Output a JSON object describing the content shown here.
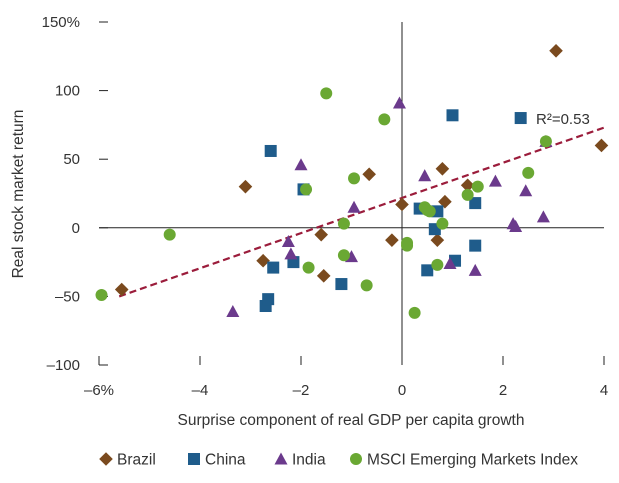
{
  "chart_data": {
    "type": "scatter",
    "xlabel": "Surprise component of real GDP per capita growth",
    "ylabel": "Real stock market return",
    "xlim": [
      -6,
      4
    ],
    "ylim": [
      -100,
      150
    ],
    "x_ticks": [
      -6,
      -4,
      -2,
      0,
      2,
      4
    ],
    "x_tick_labels": [
      "–6%",
      "–4",
      "–2",
      "0",
      "2",
      "4"
    ],
    "y_ticks": [
      -100,
      -50,
      0,
      50,
      100,
      150
    ],
    "y_tick_labels": [
      "–100",
      "–50",
      "0",
      "50",
      "100",
      "150%"
    ],
    "grid": false,
    "legend_position": "bottom",
    "trendline": {
      "x": [
        -5.6,
        4
      ],
      "y": [
        -50,
        73
      ],
      "color": "#9b1c3b",
      "style": "dashed"
    },
    "annotation": "R²=0.53",
    "series": [
      {
        "name": "Brazil",
        "marker": "diamond",
        "color": "#7a4a1e",
        "points": [
          [
            -5.55,
            -45
          ],
          [
            -3.1,
            30
          ],
          [
            -2.75,
            -24
          ],
          [
            -1.6,
            -5
          ],
          [
            -1.55,
            -35
          ],
          [
            -0.65,
            39
          ],
          [
            -0.2,
            -9
          ],
          [
            0,
            17
          ],
          [
            0.7,
            -9
          ],
          [
            0.85,
            19
          ],
          [
            0.8,
            43
          ],
          [
            1.3,
            31
          ],
          [
            3.05,
            129
          ],
          [
            3.95,
            60
          ]
        ]
      },
      {
        "name": "China",
        "marker": "square",
        "color": "#1f5c8b",
        "points": [
          [
            -2.6,
            56
          ],
          [
            -2.7,
            -57
          ],
          [
            -2.65,
            -52
          ],
          [
            -2.55,
            -29
          ],
          [
            -2.15,
            -25
          ],
          [
            -1.95,
            28
          ],
          [
            -1.2,
            -41
          ],
          [
            0.35,
            14
          ],
          [
            0.5,
            -31
          ],
          [
            0.65,
            -1
          ],
          [
            0.7,
            12
          ],
          [
            1.0,
            82
          ],
          [
            1.05,
            -24
          ],
          [
            1.45,
            18
          ],
          [
            1.45,
            -13
          ],
          [
            2.35,
            80
          ]
        ]
      },
      {
        "name": "India",
        "marker": "triangle",
        "color": "#6b3a8c",
        "points": [
          [
            -3.35,
            -61
          ],
          [
            -2.25,
            -10
          ],
          [
            -2.2,
            -19
          ],
          [
            -2.0,
            46
          ],
          [
            -1.0,
            -21
          ],
          [
            -0.95,
            15
          ],
          [
            -0.05,
            91
          ],
          [
            0.45,
            38
          ],
          [
            0.95,
            -26
          ],
          [
            1.45,
            -31
          ],
          [
            1.85,
            34
          ],
          [
            2.2,
            3
          ],
          [
            2.25,
            1
          ],
          [
            2.45,
            27
          ],
          [
            2.8,
            8
          ],
          [
            2.85,
            63
          ]
        ]
      },
      {
        "name": "MSCI Emerging Markets Index",
        "marker": "circle",
        "color": "#6aa833",
        "points": [
          [
            -5.95,
            -49
          ],
          [
            -4.6,
            -5
          ],
          [
            -1.9,
            28
          ],
          [
            -1.85,
            -29
          ],
          [
            -1.5,
            98
          ],
          [
            -1.15,
            3
          ],
          [
            -1.15,
            -20
          ],
          [
            -0.95,
            36
          ],
          [
            -0.7,
            -42
          ],
          [
            -0.35,
            79
          ],
          [
            0.1,
            -11
          ],
          [
            0.1,
            -13
          ],
          [
            0.25,
            -62
          ],
          [
            0.45,
            15
          ],
          [
            0.5,
            13
          ],
          [
            0.55,
            12
          ],
          [
            0.7,
            -27
          ],
          [
            0.8,
            3
          ],
          [
            1.3,
            24
          ],
          [
            1.5,
            30
          ],
          [
            2.5,
            40
          ],
          [
            2.85,
            63
          ]
        ]
      }
    ]
  }
}
